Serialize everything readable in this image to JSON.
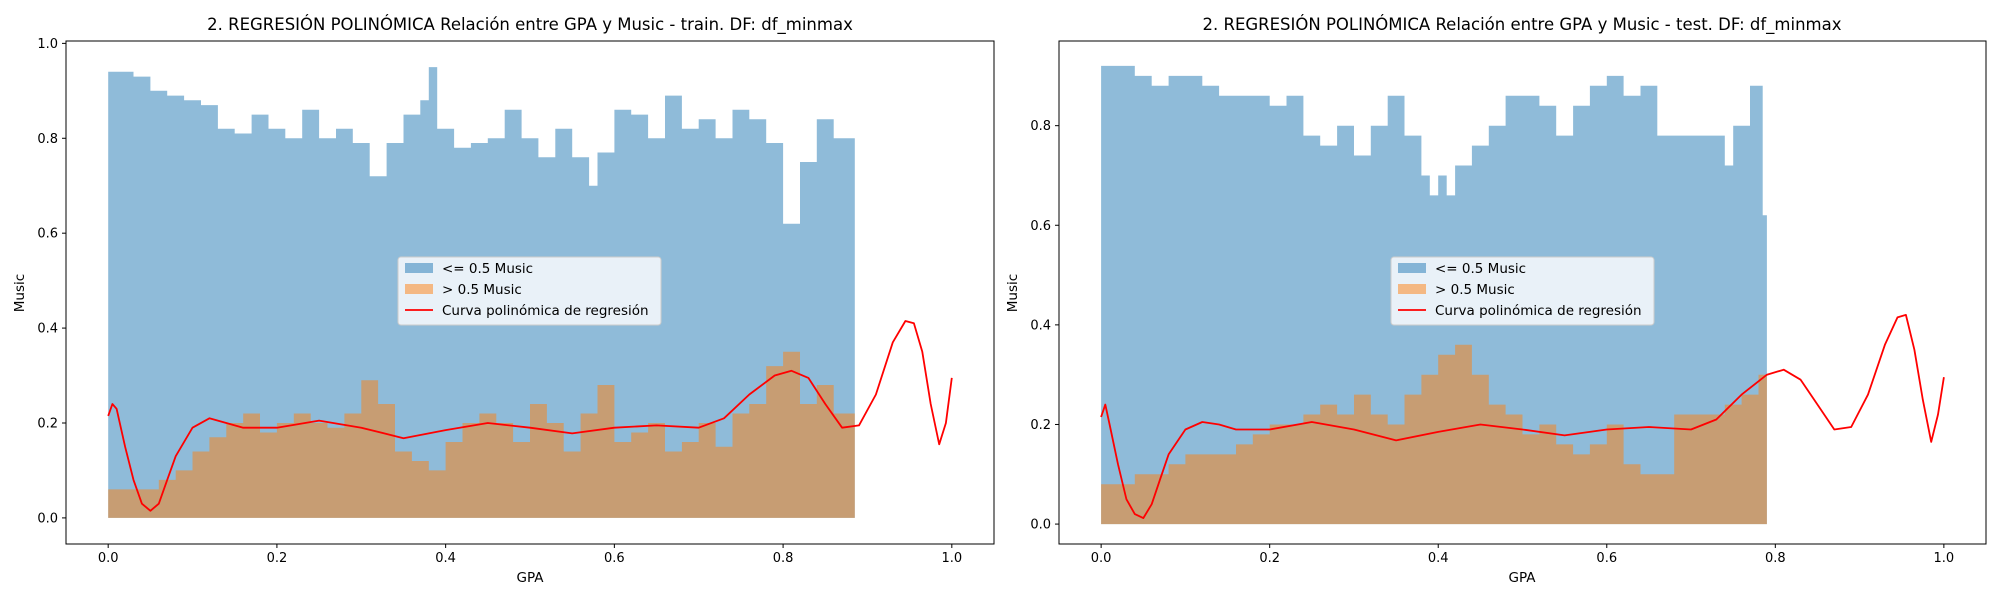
{
  "chart_data": [
    {
      "type": "area",
      "title": "2. REGRESIÓN POLINÓMICA Relación entre GPA y Music - train. DF: df_minmax",
      "xlabel": "GPA",
      "ylabel": "Music",
      "xlim": [
        -0.05,
        1.05
      ],
      "ylim": [
        -0.055,
        1.005
      ],
      "xticks": [
        "0.0",
        "0.2",
        "0.4",
        "0.6",
        "0.8",
        "1.0"
      ],
      "yticks": [
        "0.0",
        "0.2",
        "0.4",
        "0.6",
        "0.8",
        "1.0"
      ],
      "legend_position": "center",
      "grid": false,
      "series": [
        {
          "name": "<= 0.5 Music",
          "kind": "area",
          "color": "#1f77b4",
          "x": [
            0.0,
            0.01,
            0.03,
            0.05,
            0.07,
            0.09,
            0.11,
            0.13,
            0.15,
            0.17,
            0.19,
            0.21,
            0.23,
            0.25,
            0.27,
            0.29,
            0.31,
            0.33,
            0.35,
            0.37,
            0.38,
            0.39,
            0.41,
            0.43,
            0.45,
            0.47,
            0.49,
            0.51,
            0.53,
            0.55,
            0.57,
            0.58,
            0.6,
            0.62,
            0.64,
            0.66,
            0.68,
            0.7,
            0.72,
            0.74,
            0.76,
            0.78,
            0.8,
            0.82,
            0.84,
            0.86,
            0.885
          ],
          "values": [
            0.94,
            0.94,
            0.93,
            0.9,
            0.89,
            0.88,
            0.87,
            0.82,
            0.81,
            0.85,
            0.82,
            0.8,
            0.86,
            0.8,
            0.82,
            0.79,
            0.72,
            0.79,
            0.85,
            0.88,
            0.95,
            0.82,
            0.78,
            0.79,
            0.8,
            0.86,
            0.8,
            0.76,
            0.82,
            0.76,
            0.7,
            0.77,
            0.86,
            0.85,
            0.8,
            0.89,
            0.82,
            0.84,
            0.8,
            0.86,
            0.84,
            0.79,
            0.62,
            0.75,
            0.84,
            0.8,
            0.76
          ]
        },
        {
          "name": "> 0.5 Music",
          "kind": "area",
          "color": "#ff7f0e",
          "x": [
            0.0,
            0.02,
            0.04,
            0.06,
            0.08,
            0.1,
            0.12,
            0.14,
            0.16,
            0.18,
            0.2,
            0.22,
            0.24,
            0.26,
            0.28,
            0.3,
            0.32,
            0.34,
            0.36,
            0.38,
            0.4,
            0.42,
            0.44,
            0.46,
            0.48,
            0.5,
            0.52,
            0.54,
            0.56,
            0.58,
            0.6,
            0.62,
            0.64,
            0.66,
            0.68,
            0.7,
            0.72,
            0.74,
            0.76,
            0.78,
            0.8,
            0.82,
            0.84,
            0.86,
            0.885
          ],
          "values": [
            0.06,
            0.06,
            0.06,
            0.08,
            0.1,
            0.14,
            0.17,
            0.2,
            0.22,
            0.18,
            0.2,
            0.22,
            0.2,
            0.19,
            0.22,
            0.29,
            0.24,
            0.14,
            0.12,
            0.1,
            0.16,
            0.2,
            0.22,
            0.2,
            0.16,
            0.24,
            0.2,
            0.14,
            0.22,
            0.28,
            0.16,
            0.18,
            0.2,
            0.14,
            0.16,
            0.2,
            0.15,
            0.22,
            0.24,
            0.32,
            0.35,
            0.24,
            0.28,
            0.22,
            0.24
          ]
        },
        {
          "name": "Curva polinómica de regresión",
          "kind": "line",
          "color": "#ff0000",
          "x": [
            0.0,
            0.005,
            0.01,
            0.02,
            0.03,
            0.04,
            0.05,
            0.06,
            0.07,
            0.08,
            0.1,
            0.12,
            0.14,
            0.16,
            0.2,
            0.25,
            0.3,
            0.35,
            0.4,
            0.45,
            0.5,
            0.55,
            0.6,
            0.65,
            0.7,
            0.73,
            0.76,
            0.79,
            0.81,
            0.83,
            0.85,
            0.87,
            0.89,
            0.91,
            0.93,
            0.945,
            0.955,
            0.965,
            0.975,
            0.985,
            0.993,
            1.0
          ],
          "values": [
            0.215,
            0.24,
            0.23,
            0.15,
            0.08,
            0.03,
            0.015,
            0.03,
            0.08,
            0.13,
            0.19,
            0.21,
            0.2,
            0.19,
            0.19,
            0.205,
            0.19,
            0.168,
            0.185,
            0.2,
            0.19,
            0.178,
            0.19,
            0.195,
            0.19,
            0.21,
            0.26,
            0.3,
            0.31,
            0.295,
            0.24,
            0.19,
            0.195,
            0.26,
            0.37,
            0.415,
            0.41,
            0.35,
            0.24,
            0.155,
            0.2,
            0.295
          ]
        }
      ]
    },
    {
      "type": "area",
      "title": "2. REGRESIÓN POLINÓMICA Relación entre GPA y Music - test. DF: df_minmax",
      "xlabel": "GPA",
      "ylabel": "Music",
      "xlim": [
        -0.05,
        1.05
      ],
      "ylim": [
        -0.04,
        0.97
      ],
      "xticks": [
        "0.0",
        "0.2",
        "0.4",
        "0.6",
        "0.8",
        "1.0"
      ],
      "yticks": [
        "0.0",
        "0.2",
        "0.4",
        "0.6",
        "0.8"
      ],
      "legend_position": "center",
      "grid": false,
      "series": [
        {
          "name": "<= 0.5 Music",
          "kind": "area",
          "color": "#1f77b4",
          "x": [
            0.0,
            0.02,
            0.04,
            0.06,
            0.08,
            0.1,
            0.12,
            0.14,
            0.16,
            0.18,
            0.2,
            0.22,
            0.24,
            0.26,
            0.28,
            0.3,
            0.32,
            0.34,
            0.36,
            0.38,
            0.39,
            0.4,
            0.41,
            0.42,
            0.44,
            0.46,
            0.48,
            0.5,
            0.52,
            0.54,
            0.56,
            0.58,
            0.6,
            0.62,
            0.64,
            0.66,
            0.68,
            0.7,
            0.72,
            0.74,
            0.75,
            0.77,
            0.785,
            0.79
          ],
          "values": [
            0.92,
            0.92,
            0.9,
            0.88,
            0.9,
            0.9,
            0.88,
            0.86,
            0.86,
            0.86,
            0.84,
            0.86,
            0.78,
            0.76,
            0.8,
            0.74,
            0.8,
            0.86,
            0.78,
            0.7,
            0.66,
            0.7,
            0.66,
            0.72,
            0.76,
            0.8,
            0.86,
            0.86,
            0.84,
            0.78,
            0.84,
            0.88,
            0.9,
            0.86,
            0.88,
            0.78,
            0.78,
            0.78,
            0.78,
            0.72,
            0.8,
            0.88,
            0.62,
            0.64
          ]
        },
        {
          "name": "> 0.5 Music",
          "kind": "area",
          "color": "#ff7f0e",
          "x": [
            0.0,
            0.02,
            0.04,
            0.06,
            0.08,
            0.1,
            0.12,
            0.14,
            0.16,
            0.18,
            0.2,
            0.22,
            0.24,
            0.26,
            0.28,
            0.3,
            0.32,
            0.34,
            0.36,
            0.38,
            0.4,
            0.42,
            0.44,
            0.46,
            0.48,
            0.5,
            0.52,
            0.54,
            0.56,
            0.58,
            0.6,
            0.62,
            0.64,
            0.66,
            0.68,
            0.7,
            0.72,
            0.74,
            0.76,
            0.78,
            0.79
          ],
          "values": [
            0.08,
            0.08,
            0.1,
            0.1,
            0.12,
            0.14,
            0.14,
            0.14,
            0.16,
            0.18,
            0.2,
            0.2,
            0.22,
            0.24,
            0.22,
            0.26,
            0.22,
            0.2,
            0.26,
            0.3,
            0.34,
            0.36,
            0.3,
            0.24,
            0.22,
            0.18,
            0.2,
            0.16,
            0.14,
            0.16,
            0.2,
            0.12,
            0.1,
            0.1,
            0.22,
            0.22,
            0.22,
            0.24,
            0.26,
            0.3,
            0.36
          ]
        },
        {
          "name": "Curva polinómica de regresión",
          "kind": "line",
          "color": "#ff0000",
          "x": [
            0.0,
            0.005,
            0.01,
            0.02,
            0.03,
            0.04,
            0.05,
            0.06,
            0.07,
            0.08,
            0.1,
            0.12,
            0.14,
            0.16,
            0.2,
            0.25,
            0.3,
            0.35,
            0.4,
            0.45,
            0.5,
            0.55,
            0.6,
            0.65,
            0.7,
            0.73,
            0.76,
            0.79,
            0.81,
            0.83,
            0.85,
            0.87,
            0.89,
            0.91,
            0.93,
            0.945,
            0.955,
            0.965,
            0.975,
            0.985,
            0.993,
            1.0
          ],
          "values": [
            0.215,
            0.24,
            0.2,
            0.12,
            0.05,
            0.02,
            0.012,
            0.04,
            0.09,
            0.14,
            0.19,
            0.205,
            0.2,
            0.19,
            0.19,
            0.205,
            0.19,
            0.168,
            0.185,
            0.2,
            0.19,
            0.178,
            0.19,
            0.195,
            0.19,
            0.21,
            0.26,
            0.3,
            0.31,
            0.29,
            0.24,
            0.19,
            0.195,
            0.26,
            0.36,
            0.415,
            0.42,
            0.35,
            0.25,
            0.165,
            0.22,
            0.295
          ]
        }
      ]
    }
  ]
}
